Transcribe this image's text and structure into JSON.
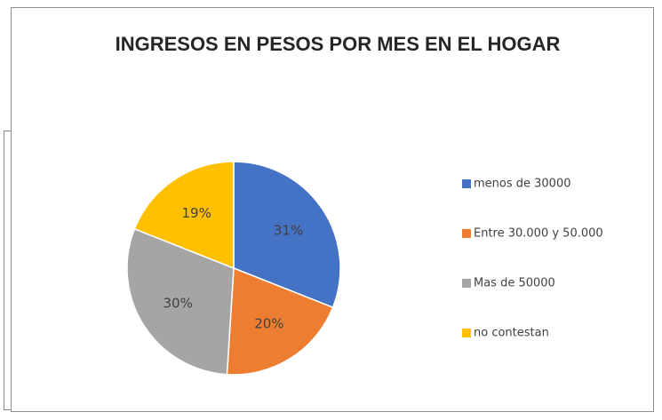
{
  "chart_data": {
    "type": "pie",
    "title": "INGRESOS EN PESOS POR MES EN EL HOGAR",
    "categories": [
      "menos de 30000",
      "Entre 30.000 y 50.000",
      "Mas de 50000",
      "no contestan"
    ],
    "values": [
      31,
      20,
      30,
      19
    ],
    "value_labels": [
      "31%",
      "20%",
      "30%",
      "19%"
    ],
    "colors": [
      "#4472c4",
      "#ed7d31",
      "#a5a5a5",
      "#ffc000"
    ],
    "legend": "right"
  }
}
